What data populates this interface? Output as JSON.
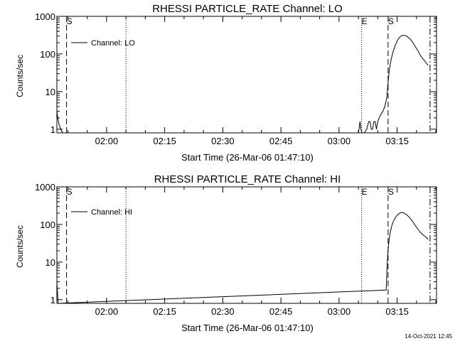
{
  "timestamp": "14-Oct-2021 12:45",
  "chart_data": [
    {
      "type": "line",
      "title": "RHESSI PARTICLE_RATE Channel: LO",
      "xlabel": "Start Time (26-Mar-06 01:47:10)",
      "ylabel": "Counts/sec",
      "yscale": "log",
      "ylim": [
        0.8,
        1000
      ],
      "xlim": [
        "01:47:10",
        "03:25:10"
      ],
      "yticks": [
        1,
        10,
        100,
        1000
      ],
      "xtick_labels": [
        "02:00",
        "02:15",
        "02:30",
        "02:45",
        "03:00",
        "03:15"
      ],
      "legend": {
        "label": "Channel: LO",
        "position": "top-left"
      },
      "markers": [
        {
          "time": "01:49:40",
          "style": "dashed",
          "label": "S"
        },
        {
          "time": "02:05:00",
          "style": "dotted",
          "label": ""
        },
        {
          "time": "03:05:50",
          "style": "dotted",
          "label": "E"
        },
        {
          "time": "03:12:40",
          "style": "dashed",
          "label": "S"
        },
        {
          "time": "03:23:30",
          "style": "dashdot",
          "label": ""
        }
      ],
      "series": [
        {
          "x": [
            "01:47:10",
            "01:47:20",
            "01:47:40",
            "01:48:10",
            "01:48:40",
            "03:05:00",
            "03:05:10",
            "03:05:25",
            "03:05:40",
            "03:05:55",
            "03:06:10",
            "03:06:30",
            "03:07:10",
            "03:07:40",
            "03:08:00",
            "03:08:20",
            "03:08:40",
            "03:09:00",
            "03:09:20",
            "03:09:40",
            "03:10:00",
            "03:10:20",
            "03:10:50",
            "03:11:20",
            "03:11:50",
            "03:12:20",
            "03:12:40",
            "03:13:00",
            "03:13:30",
            "03:14:00",
            "03:14:30",
            "03:15:00",
            "03:15:30",
            "03:16:00",
            "03:16:30",
            "03:17:00",
            "03:17:30",
            "03:18:00",
            "03:18:30",
            "03:19:00",
            "03:19:30",
            "03:20:00",
            "03:20:30",
            "03:21:00",
            "03:21:30",
            "03:22:00",
            "03:22:30",
            "03:23:00"
          ],
          "y": [
            3,
            2.2,
            1.4,
            1.0,
            0.8,
            0.8,
            1.0,
            1.6,
            1.0,
            0.8,
            0.8,
            0.8,
            1.0,
            1.6,
            1.6,
            1.0,
            1.0,
            1.6,
            1.6,
            1.0,
            1.6,
            2.0,
            2.5,
            3.0,
            4.0,
            7.0,
            18,
            40,
            75,
            120,
            170,
            220,
            265,
            300,
            315,
            310,
            295,
            270,
            240,
            205,
            170,
            140,
            115,
            92,
            78,
            68,
            58,
            50
          ]
        }
      ]
    },
    {
      "type": "line",
      "title": "RHESSI PARTICLE_RATE Channel: HI",
      "xlabel": "Start Time (26-Mar-06 01:47:10)",
      "ylabel": "Counts/sec",
      "yscale": "log",
      "ylim": [
        0.8,
        1000
      ],
      "xlim": [
        "01:47:10",
        "03:25:10"
      ],
      "yticks": [
        1,
        10,
        100,
        1000
      ],
      "xtick_labels": [
        "02:00",
        "02:15",
        "02:30",
        "02:45",
        "03:00",
        "03:15"
      ],
      "legend": {
        "label": "Channel: HI",
        "position": "top-left"
      },
      "markers": [
        {
          "time": "01:49:40",
          "style": "dashed",
          "label": "S"
        },
        {
          "time": "02:05:00",
          "style": "dotted",
          "label": ""
        },
        {
          "time": "03:05:50",
          "style": "dotted",
          "label": "E"
        },
        {
          "time": "03:12:40",
          "style": "dashed",
          "label": "S"
        },
        {
          "time": "03:23:30",
          "style": "dashdot",
          "label": ""
        }
      ],
      "series": [
        {
          "x": [
            "01:47:10",
            "01:47:20",
            "01:47:30",
            "03:12:10",
            "03:12:25",
            "03:12:40",
            "03:13:00",
            "03:13:20",
            "03:13:40",
            "03:14:00",
            "03:14:30",
            "03:15:00",
            "03:15:30",
            "03:16:00",
            "03:16:30",
            "03:17:00",
            "03:17:30",
            "03:18:00",
            "03:18:30",
            "03:19:00",
            "03:19:30",
            "03:20:00",
            "03:20:30",
            "03:21:00",
            "03:21:30",
            "03:22:00",
            "03:22:30",
            "03:23:00"
          ],
          "y": [
            3,
            1.5,
            0.8,
            1.8,
            8,
            22,
            45,
            70,
            95,
            120,
            150,
            175,
            195,
            205,
            205,
            195,
            180,
            160,
            140,
            120,
            100,
            85,
            72,
            62,
            55,
            50,
            45,
            40
          ]
        }
      ]
    }
  ]
}
